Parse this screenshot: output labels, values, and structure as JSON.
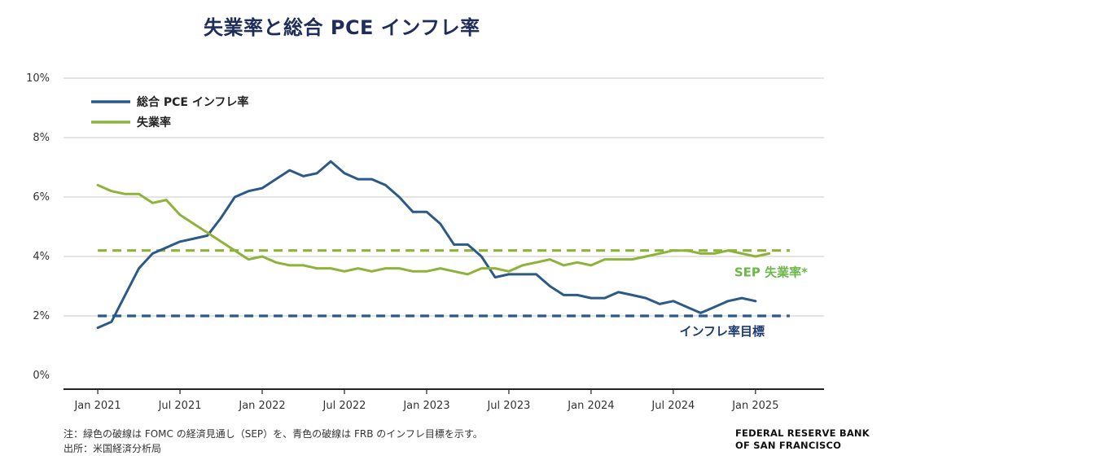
{
  "chart_data": {
    "type": "line",
    "title": "失業率と総合 PCE インフレ率",
    "xlabel": "",
    "ylabel": "",
    "ylim": [
      0,
      10
    ],
    "y_ticks": [
      "0%",
      "2%",
      "4%",
      "6%",
      "8%",
      "10%"
    ],
    "y_tick_values": [
      0,
      2,
      4,
      6,
      8,
      10
    ],
    "x_tick_labels": [
      "Jan 2021",
      "Jul 2021",
      "Jan 2022",
      "Jul 2022",
      "Jan 2023",
      "Jul 2023",
      "Jan 2024",
      "Jul 2024",
      "Jan 2025"
    ],
    "x_tick_months": [
      0,
      6,
      12,
      18,
      24,
      30,
      36,
      42,
      48
    ],
    "x_range_months": [
      -2.5,
      53
    ],
    "grid": true,
    "legend_position": "top-left",
    "series": [
      {
        "name": "総合 PCE インフレ率",
        "color": "#2b5a87",
        "values": [
          1.6,
          1.8,
          2.7,
          3.6,
          4.1,
          4.3,
          4.5,
          4.6,
          4.7,
          5.3,
          6.0,
          6.2,
          6.3,
          6.6,
          6.9,
          6.7,
          6.8,
          7.2,
          6.8,
          6.6,
          6.6,
          6.4,
          6.0,
          5.5,
          5.5,
          5.1,
          4.4,
          4.4,
          4.0,
          3.3,
          3.4,
          3.4,
          3.4,
          3.0,
          2.7,
          2.7,
          2.6,
          2.6,
          2.8,
          2.7,
          2.6,
          2.4,
          2.5,
          2.3,
          2.1,
          2.3,
          2.5,
          2.6,
          2.5
        ]
      },
      {
        "name": "失業率",
        "color": "#8db33b",
        "values": [
          6.4,
          6.2,
          6.1,
          6.1,
          5.8,
          5.9,
          5.4,
          5.1,
          4.8,
          4.5,
          4.2,
          3.9,
          4.0,
          3.8,
          3.7,
          3.7,
          3.6,
          3.6,
          3.5,
          3.6,
          3.5,
          3.6,
          3.6,
          3.5,
          3.5,
          3.6,
          3.5,
          3.4,
          3.6,
          3.6,
          3.5,
          3.7,
          3.8,
          3.9,
          3.7,
          3.8,
          3.7,
          3.9,
          3.9,
          3.9,
          4.0,
          4.1,
          4.2,
          4.2,
          4.1,
          4.1,
          4.2,
          4.1,
          4.0,
          4.1
        ]
      }
    ],
    "reference_lines": [
      {
        "name": "SEP 失業率*",
        "value": 4.2,
        "color": "#8db33b",
        "label_color": "#6cb84a",
        "style": "dashed"
      },
      {
        "name": "インフレ率目標",
        "value": 2.0,
        "color": "#2b5a87",
        "label_color": "#1f3b70",
        "style": "dashed"
      }
    ]
  },
  "notes": {
    "line1": "注：緑色の破線は FOMC の経済見通し（SEP）を、青色の破線は FRB のインフレ目標を示す。",
    "line2": "出所：米国経済分析局"
  },
  "source": {
    "line1": "FEDERAL RESERVE BANK",
    "line2": "OF SAN FRANCISCO"
  }
}
